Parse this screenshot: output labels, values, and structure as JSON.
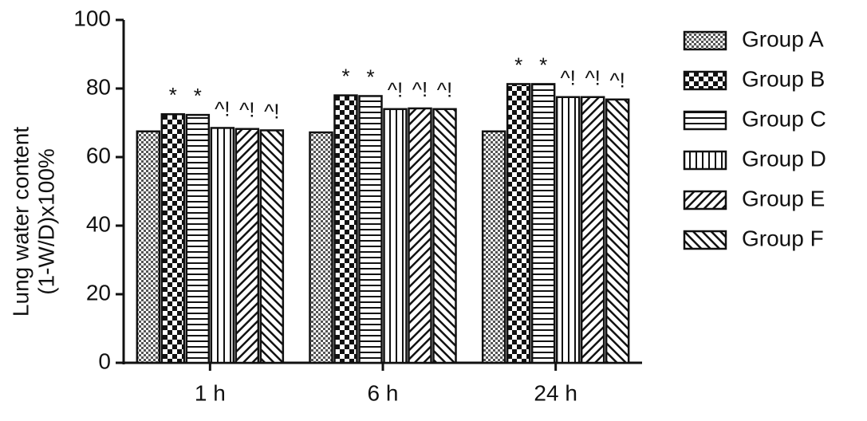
{
  "chart_data": {
    "type": "bar",
    "ylabel": [
      "Lung water content",
      "(1-W/D)x100%"
    ],
    "categories": [
      "1 h",
      "6 h",
      "24 h"
    ],
    "ylim": [
      0,
      100
    ],
    "yticks": [
      0,
      20,
      40,
      60,
      80,
      100
    ],
    "legend": "right",
    "series": [
      {
        "name": "Group A",
        "pattern": "fine-check",
        "values": [
          67.5,
          67.2,
          67.5
        ],
        "annotations": [
          null,
          null,
          null
        ]
      },
      {
        "name": "Group B",
        "pattern": "check",
        "values": [
          72.5,
          78,
          81.3
        ],
        "annotations": [
          "*",
          "*",
          "*"
        ]
      },
      {
        "name": "Group C",
        "pattern": "hlines",
        "values": [
          72.3,
          77.8,
          81.3
        ],
        "annotations": [
          "*",
          "*",
          "*"
        ]
      },
      {
        "name": "Group D",
        "pattern": "vlines",
        "values": [
          68.5,
          74,
          77.5
        ],
        "annotations": [
          "^!",
          "^!",
          "^!"
        ]
      },
      {
        "name": "Group E",
        "pattern": "diag",
        "values": [
          68.2,
          74.2,
          77.5
        ],
        "annotations": [
          "^!",
          "^!",
          "^!"
        ]
      },
      {
        "name": "Group F",
        "pattern": "antidiag",
        "values": [
          67.8,
          74,
          76.8
        ],
        "annotations": [
          "^!",
          "^!",
          "^!"
        ]
      }
    ]
  }
}
